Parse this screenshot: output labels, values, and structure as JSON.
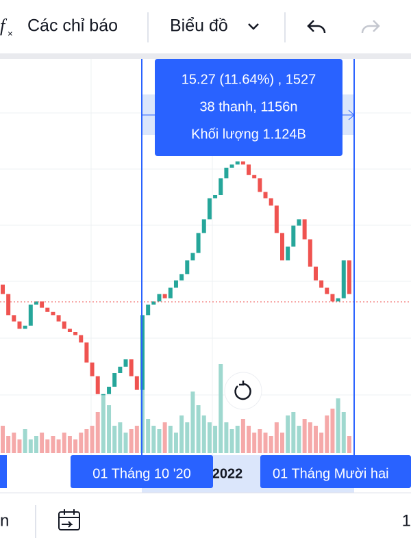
{
  "toolbar": {
    "indicators": "Các chỉ báo",
    "chart_type": "Biểu đồ"
  },
  "tooltip": {
    "line1": "15.27 (11.64%) , 1527",
    "line2": "38 thanh, 1156n",
    "line3": "Khối lượng 1.124B"
  },
  "time_axis": {
    "start_label": "01 Tháng 10 '20",
    "year_label": "2022",
    "end_label": "01 Tháng Mười hai"
  },
  "bottom_bar": {
    "left": "n",
    "right": "1"
  },
  "chart_data": {
    "type": "candlestick",
    "open": [
      18.5,
      17.6,
      15.6,
      15.0,
      14.3,
      14.6,
      16.6,
      16.9,
      16.3,
      15.9,
      15.6,
      15.0,
      14.3,
      14.0,
      13.7,
      13.0,
      11.1,
      9.8,
      8.1,
      8.1,
      8.8,
      10.1,
      10.7,
      11.4,
      9.8,
      8.5,
      15.6,
      16.6,
      16.9,
      17.6,
      17.2,
      18.2,
      18.9,
      19.5,
      20.8,
      21.5,
      23.4,
      24.7,
      26.7,
      27.0,
      28.6,
      29.6,
      29.9,
      30.2,
      29.9,
      28.9,
      28.6,
      27.3,
      26.7,
      26.0,
      23.4,
      20.8,
      22.1,
      24.1,
      24.7,
      22.8,
      20.2,
      18.9,
      18.2,
      17.6,
      16.9,
      17.2,
      20.8
    ],
    "close": [
      17.6,
      15.6,
      15.0,
      14.3,
      14.6,
      16.6,
      16.9,
      16.3,
      15.9,
      15.6,
      15.0,
      14.3,
      14.0,
      13.7,
      13.0,
      11.1,
      9.8,
      8.1,
      8.1,
      8.8,
      10.1,
      10.7,
      11.4,
      9.8,
      8.5,
      15.6,
      16.6,
      16.9,
      17.6,
      17.2,
      18.2,
      18.9,
      19.5,
      20.8,
      21.5,
      23.4,
      24.7,
      26.7,
      27.0,
      28.6,
      29.6,
      29.9,
      30.2,
      29.9,
      28.9,
      28.6,
      27.3,
      26.7,
      26.0,
      23.4,
      20.8,
      22.1,
      24.1,
      24.7,
      22.8,
      20.2,
      18.9,
      18.2,
      17.6,
      16.9,
      17.2,
      20.8,
      17.6
    ],
    "volume": [
      40,
      25,
      30,
      20,
      35,
      20,
      25,
      30,
      20,
      25,
      20,
      30,
      25,
      20,
      30,
      35,
      40,
      60,
      85,
      70,
      40,
      45,
      30,
      35,
      40,
      110,
      50,
      40,
      35,
      45,
      40,
      30,
      55,
      45,
      90,
      70,
      55,
      45,
      40,
      130,
      45,
      35,
      40,
      50,
      40,
      30,
      35,
      30,
      25,
      45,
      30,
      55,
      60,
      40,
      50,
      45,
      40,
      30,
      55,
      65,
      80,
      60,
      25
    ],
    "ylim": [
      2.3,
      40
    ],
    "vlim": [
      0,
      150
    ],
    "up_color": "#26a69a",
    "down_color": "#ef5350",
    "up_volume_color": "#9fd8cf",
    "down_volume_color": "#f5a9a9"
  }
}
